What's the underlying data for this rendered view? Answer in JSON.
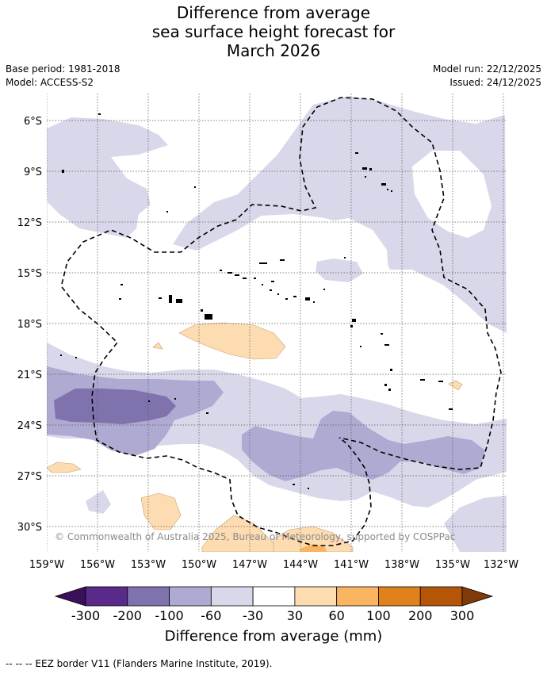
{
  "title_lines": [
    "Difference from average",
    "sea surface height forecast for",
    "March 2026"
  ],
  "meta": {
    "base_period": "Base period: 1981-2018",
    "model": "Model: ACCESS-S2",
    "model_run": "Model run: 22/12/2025",
    "issued": "Issued: 24/12/2025"
  },
  "map": {
    "lon_ticks": [
      "159°W",
      "156°W",
      "153°W",
      "150°W",
      "147°W",
      "144°W",
      "141°W",
      "138°W",
      "135°W",
      "132°W"
    ],
    "lat_ticks": [
      "6°S",
      "9°S",
      "12°S",
      "15°S",
      "18°S",
      "21°S",
      "24°S",
      "27°S",
      "30°S"
    ],
    "copyright": "© Commonwealth of Australia 2025, Bureau of Meteorology, supported by COSPPac"
  },
  "colorbar": {
    "labels": [
      "-300",
      "-200",
      "-100",
      "-60",
      "-30",
      "30",
      "60",
      "100",
      "200",
      "300"
    ],
    "colors": [
      "#3b0f5a",
      "#5a2a8a",
      "#8072ad",
      "#afaad2",
      "#d8d8ea",
      "#ffffff",
      "#fddcb2",
      "#f9b55f",
      "#e0821c",
      "#b55508",
      "#7f3b08"
    ],
    "title": "Difference from average (mm)"
  },
  "colors": {
    "light_purple": "#d8d8ea",
    "mid_purple": "#afaad2",
    "dark_purple": "#8072ad",
    "light_orange": "#fddcb2",
    "mid_orange": "#f9b55f",
    "dark_orange": "#e0821c"
  },
  "footnote": "--  --  -- EEZ border V11 (Flanders Marine Institute, 2019)."
}
